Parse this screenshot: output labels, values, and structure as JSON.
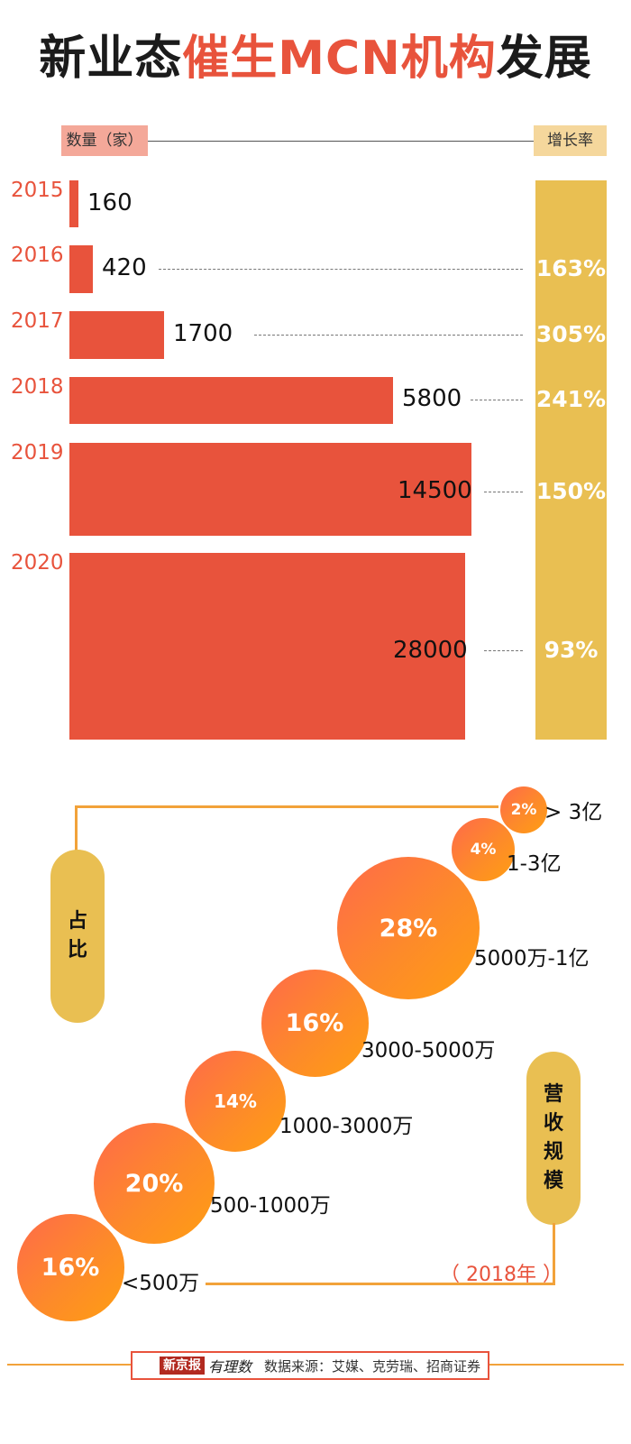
{
  "title": {
    "part1": "新业态",
    "part2": "催生MCN机构",
    "part3": "发展"
  },
  "chart_data": [
    {
      "type": "bar",
      "orientation": "horizontal",
      "left_header": "数量（家）",
      "right_header": "增长率",
      "categories": [
        "2015",
        "2016",
        "2017",
        "2018",
        "2019",
        "2020"
      ],
      "values": [
        160,
        420,
        1700,
        5800,
        14500,
        28000
      ],
      "value_labels": [
        "160",
        "420",
        "1700",
        "5800",
        "14500",
        "28000"
      ],
      "growth_rates": [
        "",
        "163%",
        "305%",
        "241%",
        "150%",
        "93%"
      ],
      "colors": {
        "bar": "#e8533c",
        "rate_column": "#e9bf52"
      }
    },
    {
      "type": "bubble",
      "axis_label_share": [
        "占",
        "比"
      ],
      "axis_label_revenue": [
        "营",
        "收",
        "规",
        "模"
      ],
      "year_note": "（ 2018年 ）",
      "categories": [
        "<500万",
        "500-1000万",
        "1000-3000万",
        "3000-5000万",
        "5000万-1亿",
        "1-3亿",
        "> 3亿"
      ],
      "values": [
        16,
        20,
        14,
        16,
        28,
        4,
        2
      ],
      "value_labels": [
        "16%",
        "20%",
        "14%",
        "16%",
        "28%",
        "4%",
        "2%"
      ]
    }
  ],
  "footer": {
    "logo_main": "新京报",
    "logo_sub": "有理数",
    "source": "数据来源：艾媒、克劳瑞、招商证券"
  }
}
